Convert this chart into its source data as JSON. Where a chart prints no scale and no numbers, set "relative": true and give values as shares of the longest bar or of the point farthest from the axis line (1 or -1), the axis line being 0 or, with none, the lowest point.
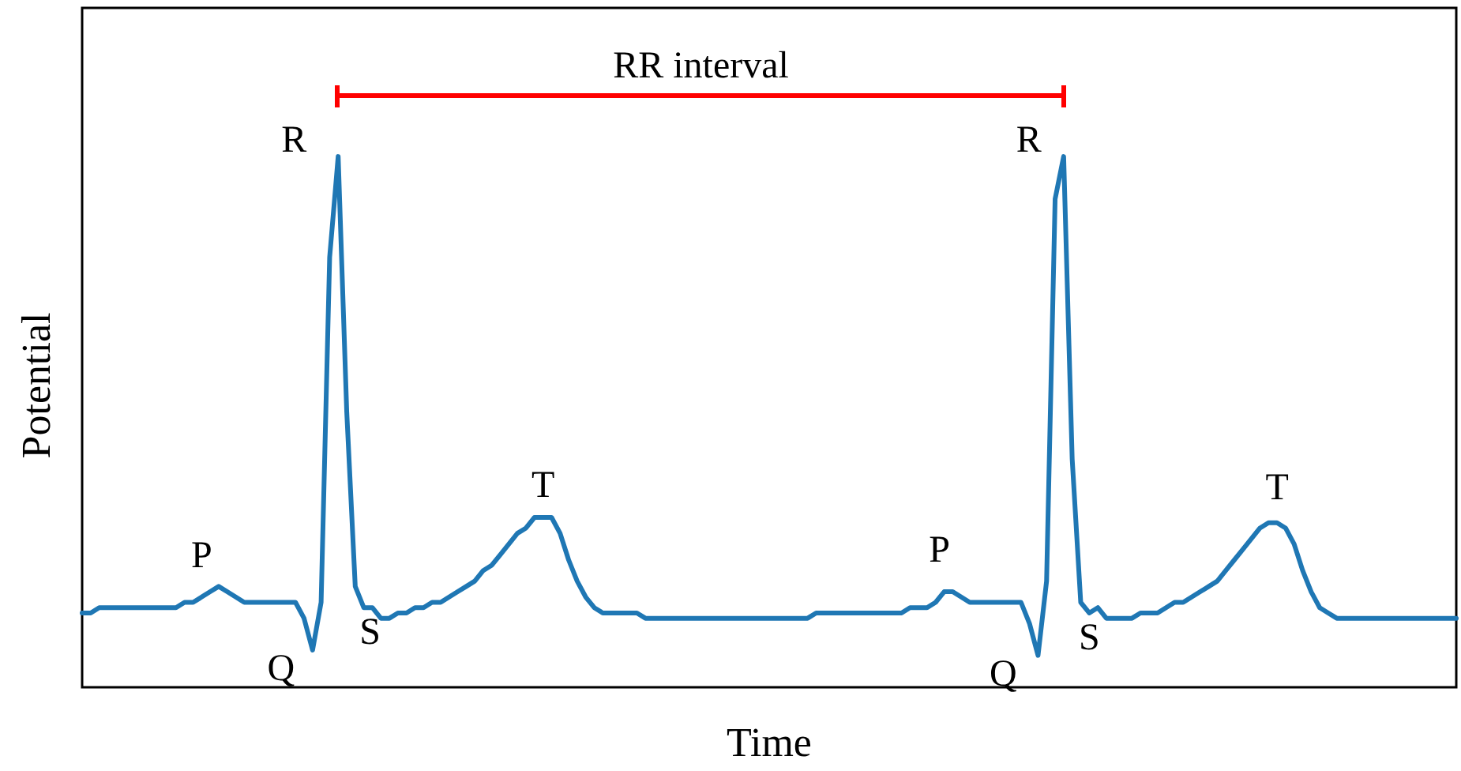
{
  "chart_data": {
    "type": "line",
    "relative": true,
    "xlabel": "Time",
    "ylabel": "Potential",
    "marker": "none",
    "line_style": "solid",
    "annotations": [
      "R",
      "R",
      "P",
      "P",
      "Q",
      "Q",
      "S",
      "S",
      "T",
      "T",
      "RR interval"
    ],
    "categories": [
      null,
      null,
      null,
      null,
      null,
      null,
      null,
      null,
      null,
      null,
      null,
      null,
      null,
      null,
      null,
      null,
      null,
      null,
      null,
      null,
      null,
      null,
      null,
      null,
      null,
      null,
      null,
      null,
      null,
      null,
      null,
      null,
      null,
      null,
      null,
      null,
      null,
      null,
      null,
      null,
      null,
      null,
      null,
      null,
      null,
      null,
      null,
      null,
      null,
      null,
      null,
      null,
      null,
      null,
      null,
      null,
      null,
      null,
      null,
      null,
      null,
      null,
      null,
      null,
      null,
      null,
      null,
      null,
      null,
      null,
      null,
      null,
      null,
      null,
      null,
      null,
      null,
      null,
      null,
      null,
      null,
      null,
      null,
      null,
      null,
      null,
      null,
      null,
      null,
      null,
      null,
      null,
      null,
      null,
      null,
      null,
      null,
      null,
      null,
      null,
      null,
      null,
      null,
      null,
      null,
      null,
      null,
      null,
      null,
      null,
      null,
      null,
      null,
      null,
      null,
      null,
      null,
      null,
      null,
      null,
      null,
      null,
      null,
      null,
      null,
      null,
      null,
      null,
      null,
      null,
      null,
      null,
      null,
      null,
      null,
      null,
      null,
      null,
      null,
      null,
      null,
      null,
      null,
      null,
      null,
      null,
      null,
      null,
      null,
      null,
      null,
      null,
      null,
      null,
      null,
      null,
      null,
      null,
      null,
      null,
      null,
      null
    ],
    "series": [
      {
        "color": "#1f77b4",
        "values": [
          0.14,
          0.14,
          0.15,
          0.15,
          0.15,
          0.15,
          0.15,
          0.15,
          0.15,
          0.15,
          0.15,
          0.15,
          0.16,
          0.16,
          0.17,
          0.18,
          0.19,
          0.18,
          0.17,
          0.16,
          0.16,
          0.16,
          0.16,
          0.16,
          0.16,
          0.16,
          0.13,
          0.07,
          0.16,
          0.81,
          1,
          0.52,
          0.19,
          0.15,
          0.15,
          0.13,
          0.13,
          0.14,
          0.14,
          0.15,
          0.15,
          0.16,
          0.16,
          0.17,
          0.18,
          0.19,
          0.2,
          0.22,
          0.23,
          0.25,
          0.27,
          0.29,
          0.3,
          0.32,
          0.32,
          0.32,
          0.29,
          0.24,
          0.2,
          0.17,
          0.15,
          0.14,
          0.14,
          0.14,
          0.14,
          0.14,
          0.13,
          0.13,
          0.13,
          0.13,
          0.13,
          0.13,
          0.13,
          0.13,
          0.13,
          0.13,
          0.13,
          0.13,
          0.13,
          0.13,
          0.13,
          0.13,
          0.13,
          0.13,
          0.13,
          0.13,
          0.14,
          0.14,
          0.14,
          0.14,
          0.14,
          0.14,
          0.14,
          0.14,
          0.14,
          0.14,
          0.14,
          0.15,
          0.15,
          0.15,
          0.16,
          0.18,
          0.18,
          0.17,
          0.16,
          0.16,
          0.16,
          0.16,
          0.16,
          0.16,
          0.16,
          0.12,
          0.06,
          0.2,
          0.92,
          1,
          0.43,
          0.16,
          0.14,
          0.15,
          0.13,
          0.13,
          0.13,
          0.13,
          0.14,
          0.14,
          0.14,
          0.15,
          0.16,
          0.16,
          0.17,
          0.18,
          0.19,
          0.2,
          0.22,
          0.24,
          0.26,
          0.28,
          0.3,
          0.31,
          0.31,
          0.3,
          0.27,
          0.22,
          0.18,
          0.15,
          0.14,
          0.13,
          0.13,
          0.13,
          0.13,
          0.13,
          0.13,
          0.13,
          0.13,
          0.13,
          0.13,
          0.13,
          0.13,
          0.13,
          0.13,
          0.13
        ]
      }
    ]
  }
}
